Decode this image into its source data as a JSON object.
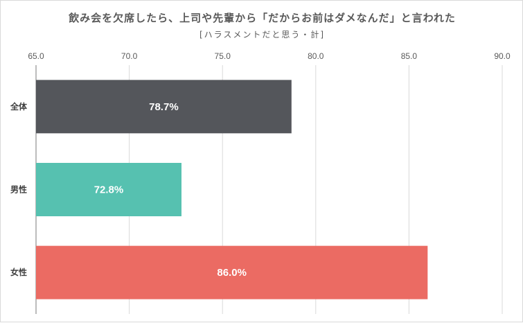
{
  "chart_data": {
    "type": "bar",
    "orientation": "horizontal",
    "title": "飲み会を欠席したら、上司や先輩から「だからお前はダメなんだ」と言われた",
    "subtitle": "[ハラスメントだと思う・計]",
    "xlim": [
      65.0,
      90.0
    ],
    "x_ticks": [
      "65.0",
      "70.0",
      "75.0",
      "80.0",
      "85.0",
      "90.0"
    ],
    "grid": "vertical",
    "categories": [
      "全体",
      "男性",
      "女性"
    ],
    "values": [
      78.7,
      72.8,
      86.0
    ],
    "value_labels": [
      "78.7%",
      "72.8%",
      "86.0%"
    ],
    "colors": [
      "#54565b",
      "#56c1b0",
      "#eb6b63"
    ]
  }
}
